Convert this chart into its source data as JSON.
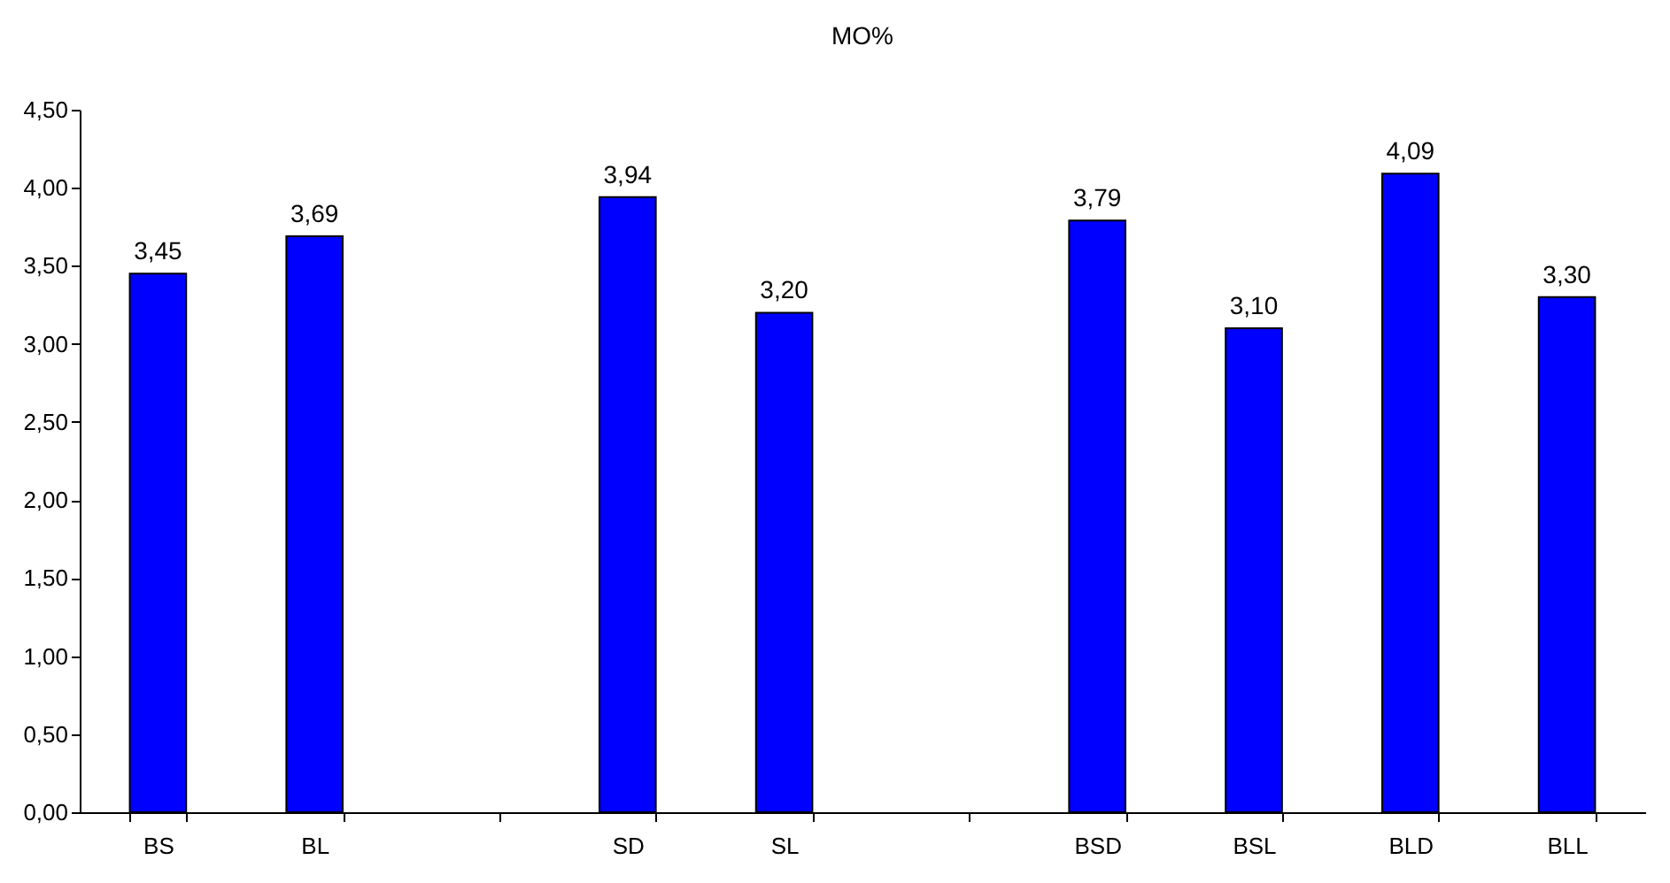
{
  "chart_data": {
    "type": "bar",
    "title": "MO%",
    "categories": [
      "BS",
      "BL",
      null,
      "SD",
      "SL",
      null,
      "BSD",
      "BSL",
      "BLD",
      "BLL"
    ],
    "values": [
      3.45,
      3.69,
      null,
      3.94,
      3.2,
      null,
      3.79,
      3.1,
      4.09,
      3.3
    ],
    "value_labels": [
      "3,45",
      "3,69",
      null,
      "3,94",
      "3,20",
      null,
      "3,79",
      "3,10",
      "4,09",
      "3,30"
    ],
    "color": "#0000ff",
    "ylim": [
      0,
      4.5
    ],
    "yticks": [
      {
        "value": 0,
        "label": "0,00"
      },
      {
        "value": 0.5,
        "label": "0,50"
      },
      {
        "value": 1,
        "label": "1,00"
      },
      {
        "value": 1.5,
        "label": "1,50"
      },
      {
        "value": 2,
        "label": "2,00"
      },
      {
        "value": 2.5,
        "label": "2,50"
      },
      {
        "value": 3,
        "label": "3,00"
      },
      {
        "value": 3.5,
        "label": "3,50"
      },
      {
        "value": 4,
        "label": "4,00"
      },
      {
        "value": 4.5,
        "label": "4,50"
      }
    ],
    "grid": false
  }
}
